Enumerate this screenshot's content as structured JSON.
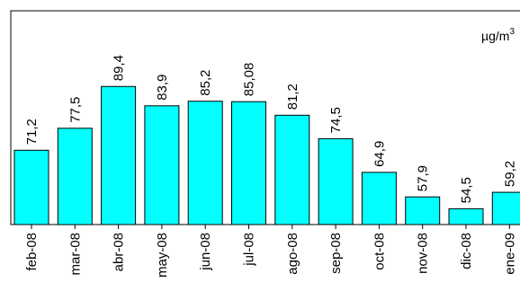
{
  "chart_data": {
    "type": "bar",
    "categories": [
      "feb-08",
      "mar-08",
      "abr-08",
      "may-08",
      "jun-08",
      "jul-08",
      "ago-08",
      "sep-08",
      "oct-08",
      "nov-08",
      "dic-08",
      "ene-09"
    ],
    "values": [
      71.2,
      77.5,
      89.4,
      83.9,
      85.2,
      85.08,
      81.2,
      74.5,
      64.9,
      57.9,
      54.5,
      59.2
    ],
    "value_labels": [
      "71,2",
      "77,5",
      "89,4",
      "83,9",
      "85,2",
      "85,08",
      "81,2",
      "74,5",
      "64,9",
      "57,9",
      "54,5",
      "59,2"
    ],
    "unit": {
      "prefix": "µg/m",
      "superscript": "3"
    },
    "ylim": [
      50,
      100
    ],
    "bar_color": "#00ffff",
    "bar_outline": "#000000",
    "grid": false,
    "legend": "none"
  }
}
